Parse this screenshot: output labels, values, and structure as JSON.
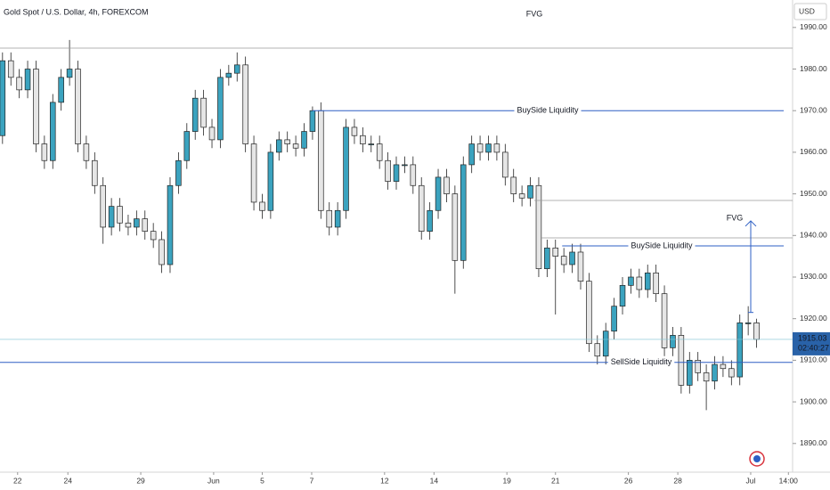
{
  "chart_data": {
    "type": "candlestick",
    "title": "Gold Spot / U.S. Dollar, 4h, FOREXCOM",
    "currency": "USD",
    "countdown": "02:40:27",
    "last_price": 1915.03,
    "fvg_labels": [
      "FVG",
      "FVG"
    ],
    "levels": [
      {
        "value": 1970,
        "label": "BuySide Liquidity"
      },
      {
        "value": 1937.5,
        "label": "BuySide Liquidity"
      },
      {
        "value": 1909.5,
        "label": "SellSide Liquidity"
      }
    ],
    "ylim": [
      1883.1,
      1996.6
    ],
    "yticks": [
      {
        "value": 1890,
        "label": "1890.00"
      },
      {
        "value": 1900,
        "label": "1900.00"
      },
      {
        "value": 1910,
        "label": "1910.00"
      },
      {
        "value": 1920,
        "label": "1920.00"
      },
      {
        "value": 1930,
        "label": "1930.00"
      },
      {
        "value": 1940,
        "label": "1940.00"
      },
      {
        "value": 1950,
        "label": "1950.00"
      },
      {
        "value": 1960,
        "label": "1960.00"
      },
      {
        "value": 1970,
        "label": "1970.00"
      },
      {
        "value": 1980,
        "label": "1980.00"
      },
      {
        "value": 1990,
        "label": "1990.00"
      }
    ],
    "xlim": [
      -0.3,
      94.3
    ],
    "xticks": [
      {
        "value": 1.8,
        "label": "22"
      },
      {
        "value": 7.8,
        "label": "24"
      },
      {
        "value": 16.5,
        "label": "29"
      },
      {
        "value": 25.2,
        "label": "Jun"
      },
      {
        "value": 31,
        "label": "5"
      },
      {
        "value": 36.9,
        "label": "7"
      },
      {
        "value": 45.6,
        "label": "12"
      },
      {
        "value": 51.5,
        "label": "14"
      },
      {
        "value": 60.2,
        "label": "19"
      },
      {
        "value": 66,
        "label": "21"
      },
      {
        "value": 74.7,
        "label": "26"
      },
      {
        "value": 80.6,
        "label": "28"
      },
      {
        "value": 89.3,
        "label": "Jul"
      },
      {
        "value": 93.8,
        "label": "14:00"
      }
    ],
    "up_color": "#3ba3bf",
    "down_color": "#e6e6e6",
    "open": [
      1964,
      1982,
      1978,
      1975,
      1980,
      1962,
      1958,
      1972,
      1978,
      1980,
      1962,
      1958,
      1952,
      1942,
      1947,
      1943,
      1942,
      1944,
      1941,
      1939,
      1933,
      1952,
      1958,
      1965,
      1973,
      1966,
      1963,
      1978,
      1979,
      1981,
      1962,
      1948,
      1946,
      1960,
      1963,
      1962,
      1961,
      1965,
      1970,
      1946,
      1942,
      1946,
      1966,
      1964,
      1962,
      1962,
      1958,
      1953,
      1957,
      1957,
      1952,
      1941,
      1946,
      1954,
      1950,
      1934,
      1957,
      1962,
      1960,
      1962,
      1960,
      1954,
      1950,
      1949,
      1952,
      1932,
      1937,
      1935,
      1933,
      1936,
      1929,
      1914,
      1911,
      1917,
      1923,
      1928,
      1930,
      1927,
      1931,
      1926,
      1913,
      1916,
      1904,
      1910,
      1907,
      1905,
      1909,
      1908,
      1906,
      1919,
      1919
    ],
    "high": [
      1984,
      1984,
      1980,
      1982,
      1982,
      1964,
      1974,
      1980,
      1987,
      1982,
      1964,
      1960,
      1954,
      1949,
      1949,
      1945,
      1946,
      1946,
      1943,
      1941,
      1954,
      1960,
      1967,
      1975,
      1975,
      1968,
      1980,
      1981,
      1984,
      1983,
      1964,
      1950,
      1962,
      1965,
      1965,
      1964,
      1967,
      1971,
      1972,
      1948,
      1948,
      1968,
      1968,
      1966,
      1964,
      1964,
      1960,
      1959,
      1959,
      1959,
      1954,
      1948,
      1956,
      1956,
      1952,
      1959,
      1964,
      1964,
      1964,
      1964,
      1962,
      1956,
      1952,
      1954,
      1954,
      1939,
      1939,
      1937,
      1938,
      1938,
      1931,
      1916,
      1919,
      1925,
      1930,
      1932,
      1932,
      1933,
      1933,
      1928,
      1918,
      1918,
      1912,
      1912,
      1909,
      1911,
      1911,
      1910,
      1921,
      1923,
      1920
    ],
    "low": [
      1962,
      1976,
      1973,
      1973,
      1960,
      1956,
      1956,
      1970,
      1976,
      1960,
      1956,
      1950,
      1938,
      1940,
      1941,
      1940,
      1940,
      1939,
      1937,
      1931,
      1931,
      1950,
      1956,
      1963,
      1964,
      1961,
      1961,
      1976,
      1977,
      1960,
      1946,
      1944,
      1944,
      1958,
      1960,
      1959,
      1959,
      1963,
      1944,
      1940,
      1940,
      1944,
      1962,
      1960,
      1960,
      1956,
      1951,
      1951,
      1955,
      1950,
      1939,
      1939,
      1944,
      1948,
      1926,
      1932,
      1955,
      1958,
      1958,
      1958,
      1952,
      1948,
      1947,
      1947,
      1930,
      1930,
      1921,
      1931,
      1931,
      1927,
      1912,
      1909,
      1909,
      1915,
      1921,
      1926,
      1925,
      1925,
      1924,
      1911,
      1911,
      1902,
      1902,
      1905,
      1898,
      1903,
      1906,
      1904,
      1904,
      1916,
      1913
    ],
    "close": [
      1982,
      1978,
      1975,
      1980,
      1962,
      1958,
      1972,
      1978,
      1980,
      1962,
      1958,
      1952,
      1942,
      1947,
      1943,
      1942,
      1944,
      1941,
      1939,
      1933,
      1952,
      1958,
      1965,
      1973,
      1966,
      1963,
      1978,
      1979,
      1981,
      1962,
      1948,
      1946,
      1960,
      1963,
      1962,
      1961,
      1965,
      1970,
      1946,
      1942,
      1946,
      1966,
      1964,
      1962,
      1962,
      1958,
      1953,
      1957,
      1957,
      1952,
      1941,
      1946,
      1954,
      1950,
      1934,
      1957,
      1962,
      1960,
      1962,
      1960,
      1954,
      1950,
      1949,
      1952,
      1932,
      1937,
      1935,
      1933,
      1936,
      1929,
      1914,
      1911,
      1917,
      1923,
      1928,
      1930,
      1927,
      1931,
      1926,
      1913,
      1916,
      1904,
      1910,
      1907,
      1905,
      1909,
      1908,
      1906,
      1919,
      1919,
      1915.03
    ]
  }
}
